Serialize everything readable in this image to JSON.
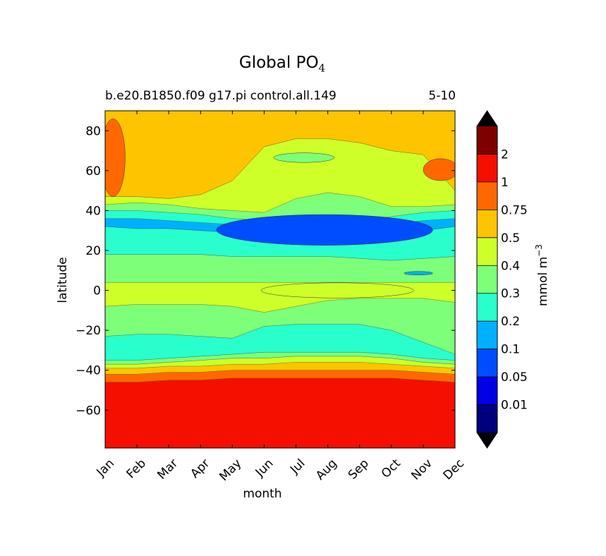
{
  "chart_data": {
    "type": "contour",
    "title": "Global PO",
    "title_subscript": "4",
    "subtitle_left": "b.e20.B1850.f09 g17.pi control.all.149",
    "subtitle_right": "5-10",
    "xlabel": "month",
    "ylabel": "latitude",
    "x_categories": [
      "Jan",
      "Feb",
      "Mar",
      "Apr",
      "May",
      "Jun",
      "Jul",
      "Aug",
      "Sep",
      "Oct",
      "Nov",
      "Dec"
    ],
    "xlim": [
      1,
      12
    ],
    "ylim": [
      -79,
      90
    ],
    "y_ticks": [
      80,
      60,
      40,
      20,
      0,
      -20,
      -40,
      -60
    ],
    "colorbar": {
      "label": "mmol m",
      "label_superscript": "−3",
      "levels": [
        "0.01",
        "0.05",
        "0.1",
        "0.2",
        "0.3",
        "0.4",
        "0.5",
        "0.75",
        "1",
        "2"
      ],
      "colors": [
        "#00007f",
        "#0000e5",
        "#004cff",
        "#00b0ff",
        "#29ffcd",
        "#7dff7a",
        "#ceff29",
        "#ffc400",
        "#ff6800",
        "#f40f00",
        "#7f0000"
      ],
      "extend": "both",
      "extend_color": "#000000"
    },
    "fields": {
      "lat_bounds": [
        {
          "month": 1,
          "b": [
            -79,
            -46,
            -42,
            -39,
            -37,
            -35,
            -23,
            -8,
            4,
            18,
            32,
            36,
            40,
            43,
            47,
            90
          ]
        },
        {
          "month": 2,
          "b": [
            -79,
            -46,
            -42,
            -39,
            -37,
            -35,
            -22,
            -7,
            4,
            18,
            31,
            36,
            40,
            44,
            47,
            90
          ]
        },
        {
          "month": 3,
          "b": [
            -79,
            -45,
            -41,
            -38,
            -36,
            -34,
            -22,
            -7,
            4,
            18,
            31,
            35,
            39,
            43,
            46,
            90
          ]
        },
        {
          "month": 4,
          "b": [
            -79,
            -45,
            -41,
            -38,
            -35,
            -33,
            -23,
            -7,
            4,
            18,
            30,
            34,
            38,
            41,
            48,
            90
          ]
        },
        {
          "month": 5,
          "b": [
            -79,
            -44,
            -40,
            -37,
            -34,
            -32,
            -24,
            -8,
            4,
            17,
            29,
            33,
            36,
            40,
            55,
            90
          ]
        },
        {
          "month": 6,
          "b": [
            -79,
            -44,
            -40,
            -37,
            -34,
            -31,
            -18,
            -11,
            4,
            17,
            28,
            32,
            35,
            39,
            72,
            90
          ]
        },
        {
          "month": 7,
          "b": [
            -79,
            -44,
            -40,
            -36,
            -33,
            -31,
            -17,
            -8,
            4,
            17,
            27,
            31,
            35,
            46,
            76,
            90
          ]
        },
        {
          "month": 8,
          "b": [
            -79,
            -44,
            -40,
            -36,
            -33,
            -31,
            -17,
            -5,
            4,
            17,
            26,
            31,
            35,
            49,
            76,
            90
          ]
        },
        {
          "month": 9,
          "b": [
            -79,
            -44,
            -40,
            -36,
            -33,
            -31,
            -17,
            -4,
            4,
            16,
            26,
            31,
            35,
            47,
            74,
            90
          ]
        },
        {
          "month": 10,
          "b": [
            -79,
            -44,
            -40,
            -37,
            -34,
            -32,
            -20,
            -4,
            4,
            15,
            28,
            33,
            37,
            42,
            70,
            90
          ]
        },
        {
          "month": 11,
          "b": [
            -79,
            -45,
            -41,
            -38,
            -36,
            -34,
            -26,
            -4,
            4,
            16,
            30,
            35,
            39,
            42,
            68,
            90
          ]
        },
        {
          "month": 12,
          "b": [
            -79,
            -46,
            -42,
            -39,
            -37,
            -35,
            -32,
            -6,
            4,
            17,
            32,
            36,
            40,
            43,
            50,
            90
          ]
        }
      ],
      "band_level_index": [
        9,
        8,
        7,
        6,
        5,
        4,
        5,
        6,
        5,
        4,
        3,
        4,
        5,
        6,
        7,
        8
      ]
    }
  }
}
